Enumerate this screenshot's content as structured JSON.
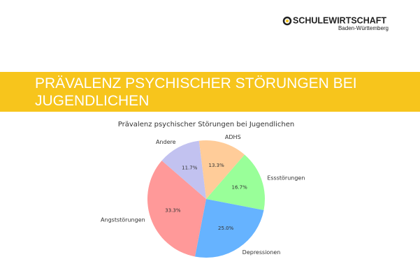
{
  "logo": {
    "name": "SCHULEWIRTSCHAFT",
    "region": "Baden-Württemberg"
  },
  "slide_title": "PRÄVALENZ PSYCHISCHER STÖRUNGEN BEI JUGENDLICHEN",
  "chart_data": {
    "type": "pie",
    "title": "Prävalenz psychischer Störungen bei Jugendlichen",
    "categories": [
      "ADHS",
      "Essstörungen",
      "Depressionen",
      "Angststörungen",
      "Andere"
    ],
    "values": [
      13.3,
      16.7,
      25.0,
      33.3,
      11.7
    ],
    "value_labels": [
      "13.3%",
      "16.7%",
      "25.0%",
      "33.3%",
      "11.7%"
    ],
    "colors": [
      "#ffcc99",
      "#99ff99",
      "#66b3ff",
      "#ff9999",
      "#c2c2f0"
    ]
  }
}
